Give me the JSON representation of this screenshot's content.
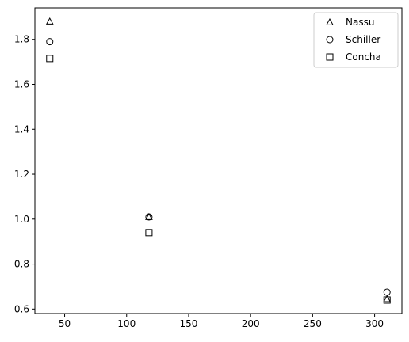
{
  "chart_data": {
    "type": "scatter",
    "title": "",
    "xlabel": "",
    "ylabel": "",
    "xlim": [
      26,
      322
    ],
    "ylim": [
      0.58,
      1.94
    ],
    "xticks": [
      50,
      100,
      150,
      200,
      250,
      300
    ],
    "yticks": [
      0.6,
      0.8,
      1.0,
      1.2,
      1.4,
      1.6,
      1.8
    ],
    "ytick_labels": [
      "0.6",
      "0.8",
      "1.0",
      "1.2",
      "1.4",
      "1.6",
      "1.8"
    ],
    "grid": false,
    "legend_position": "top-right",
    "series": [
      {
        "name": "Nassu",
        "marker": "triangle",
        "color": "#000000",
        "x": [
          38,
          118,
          310
        ],
        "y": [
          1.88,
          1.01,
          0.645
        ]
      },
      {
        "name": "Schiller",
        "marker": "circle",
        "color": "#000000",
        "x": [
          38,
          118,
          310
        ],
        "y": [
          1.79,
          1.01,
          0.675
        ]
      },
      {
        "name": "Concha",
        "marker": "square",
        "color": "#000000",
        "x": [
          38,
          118,
          310
        ],
        "y": [
          1.715,
          0.94,
          0.64
        ]
      }
    ]
  }
}
